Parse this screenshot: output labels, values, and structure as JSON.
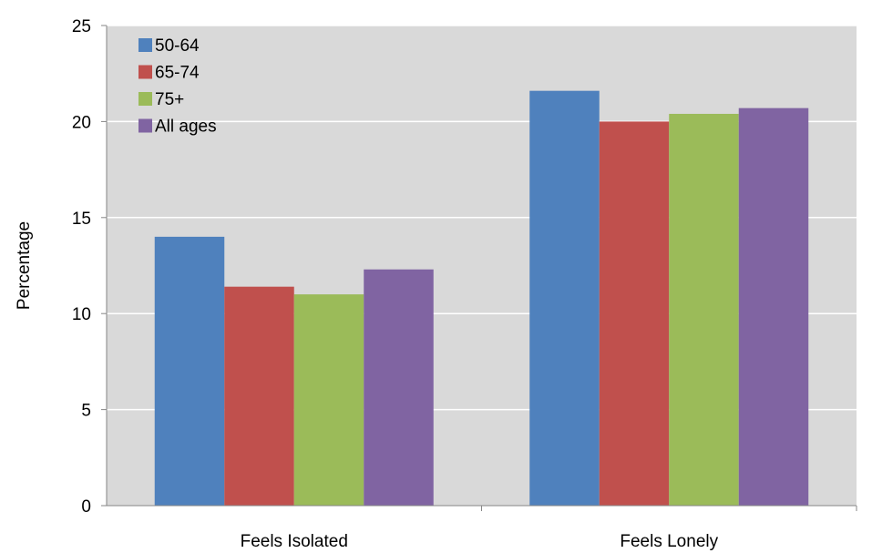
{
  "chart_data": {
    "type": "bar",
    "categories": [
      "Feels Isolated",
      "Feels Lonely"
    ],
    "series": [
      {
        "name": "50-64",
        "values": [
          14.0,
          21.6
        ],
        "color": "#4F81BD"
      },
      {
        "name": "65-74",
        "values": [
          11.4,
          20.0
        ],
        "color": "#C0504D"
      },
      {
        "name": "75+",
        "values": [
          11.0,
          20.4
        ],
        "color": "#9BBB59"
      },
      {
        "name": "All ages",
        "values": [
          12.3,
          20.7
        ],
        "color": "#8064A2"
      }
    ],
    "ylabel": "Percentage",
    "xlabel": "",
    "ylim": [
      0,
      25
    ],
    "yticks": [
      0,
      5,
      10,
      15,
      20,
      25
    ],
    "grid": true,
    "legend_position": "top-left",
    "plot_background": "#D9D9D9",
    "gridline_color": "#FFFFFF"
  }
}
